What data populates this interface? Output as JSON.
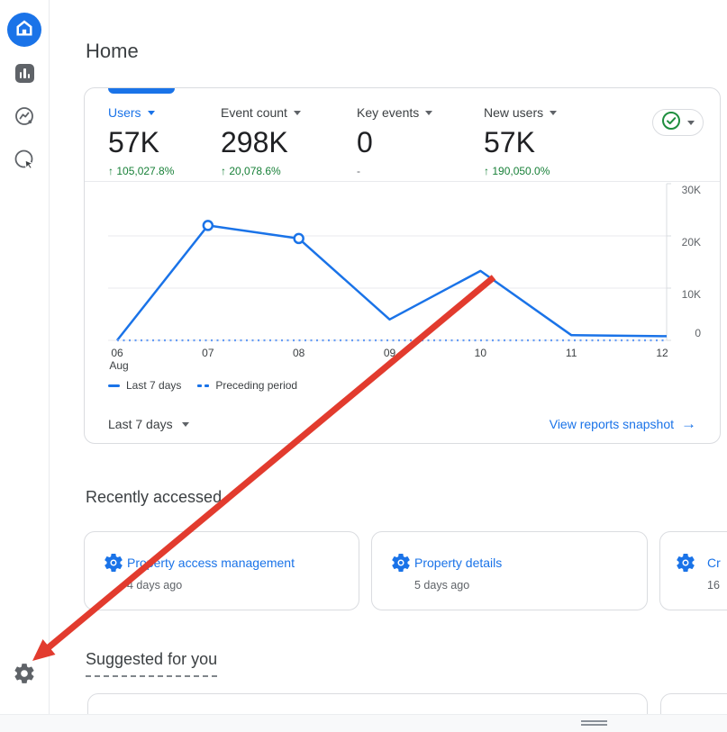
{
  "page": {
    "title": "Home"
  },
  "sidebar": {
    "items": [
      {
        "name": "home",
        "active": true
      },
      {
        "name": "reports",
        "active": false
      },
      {
        "name": "explore",
        "active": false
      },
      {
        "name": "advertising",
        "active": false
      }
    ],
    "settings": {
      "name": "admin-settings"
    }
  },
  "overview_card": {
    "metrics": [
      {
        "label": "Users",
        "value": "57K",
        "change": "105,027.8%",
        "direction": "up",
        "selected": true
      },
      {
        "label": "Event count",
        "value": "298K",
        "change": "20,078.6%",
        "direction": "up",
        "selected": false
      },
      {
        "label": "Key events",
        "value": "0",
        "change": "-",
        "direction": "none",
        "selected": false
      },
      {
        "label": "New users",
        "value": "57K",
        "change": "190,050.0%",
        "direction": "up",
        "selected": false
      }
    ],
    "footer": {
      "range_label": "Last 7 days",
      "link_label": "View reports snapshot"
    }
  },
  "chart_data": {
    "type": "line",
    "x": [
      "06",
      "07",
      "08",
      "09",
      "10",
      "11",
      "12"
    ],
    "x_month_label": "Aug",
    "series": [
      {
        "name": "Last 7 days",
        "style": "solid",
        "color": "#1a73e8",
        "values": [
          0,
          22000,
          19500,
          4000,
          13300,
          1000,
          800
        ],
        "marker_indices": [
          1,
          2
        ]
      },
      {
        "name": "Preceding period",
        "style": "dotted",
        "color": "#669df6",
        "values": [
          0,
          0,
          0,
          0,
          0,
          0,
          0
        ],
        "marker_indices": []
      }
    ],
    "ylim": [
      0,
      30000
    ],
    "yticks": [
      {
        "label": "0",
        "value": 0
      },
      {
        "label": "10K",
        "value": 10000
      },
      {
        "label": "20K",
        "value": 20000
      },
      {
        "label": "30K",
        "value": 30000
      }
    ],
    "grid": true,
    "legend_position": "bottom-left"
  },
  "recently_accessed": {
    "title": "Recently accessed",
    "cards": [
      {
        "label": "Property access management",
        "meta": "4 days ago"
      },
      {
        "label": "Property details",
        "meta": "5 days ago"
      },
      {
        "label": "Cr",
        "meta": "16"
      }
    ]
  },
  "suggested": {
    "title": "Suggested for you"
  },
  "colors": {
    "accent_blue": "#1a73e8",
    "positive_green": "#188038",
    "status_green": "#1e8e3e",
    "text_dark": "#202124",
    "text_gray": "#5f6368",
    "border": "#dadce0",
    "gridline": "#e8eaed",
    "chart_dotted": "#669df6",
    "annotation_red": "#e23b2e"
  }
}
